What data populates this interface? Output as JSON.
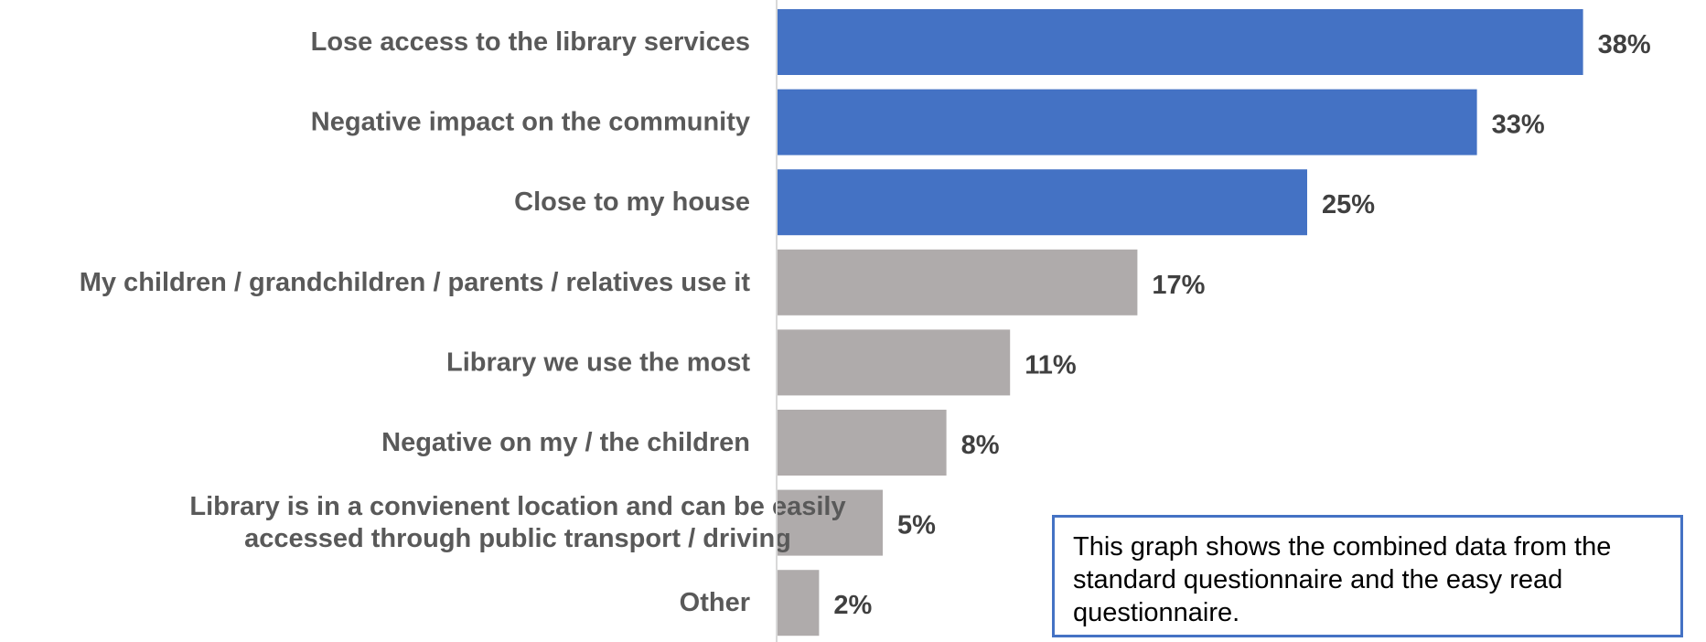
{
  "chart_data": {
    "type": "bar",
    "orientation": "horizontal",
    "categories": [
      [
        "Lose access to the library services"
      ],
      [
        "Negative impact on the community"
      ],
      [
        "Close to my house"
      ],
      [
        "My children / grandchildren / parents / relatives use it"
      ],
      [
        "Library we use the most"
      ],
      [
        "Negative on my / the children"
      ],
      [
        "Library is in a convienent location and can be easily",
        "accessed through public transport / driving"
      ],
      [
        "Other"
      ]
    ],
    "values": [
      38,
      33,
      25,
      17,
      11,
      8,
      5,
      2
    ],
    "value_labels": [
      "38%",
      "33%",
      "25%",
      "17%",
      "11%",
      "8%",
      "5%",
      "2%"
    ],
    "highlighted": [
      true,
      true,
      true,
      false,
      false,
      false,
      false,
      false
    ],
    "colors": {
      "highlight": "#4472c4",
      "default": "#afabab",
      "axis": "#d9d9d9"
    },
    "title": "",
    "xlabel": "",
    "ylabel": "",
    "xlim": [
      0,
      40
    ],
    "grid": false,
    "legend": "none"
  },
  "note": {
    "text": "This graph shows the combined data from the standard questionnaire and the easy read questionnaire."
  }
}
